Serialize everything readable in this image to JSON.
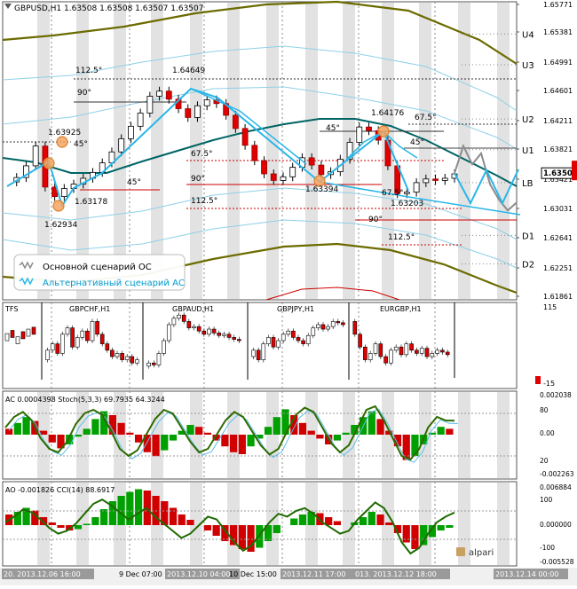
{
  "main": {
    "header": "GBPUSD,H1  1.63508 1.63508 1.63507 1.63507",
    "current_price": "1.63507",
    "price_ticks": [
      "1.65771",
      "1.65381",
      "1.64991",
      "1.64601",
      "1.64211",
      "1.63821",
      "1.63421",
      "1.63031",
      "1.62641",
      "1.62251",
      "1.61861"
    ],
    "level_labels": [
      "U4",
      "U3",
      "U2",
      "U1",
      "LB",
      "D1",
      "D2"
    ],
    "angle_labels": [
      "112.5°",
      "90°",
      "45°",
      "45°",
      "67.5°",
      "90°",
      "112.5°",
      "45°",
      "67.5°",
      "45°",
      "67.5°",
      "90°",
      "112.5°"
    ],
    "price_labels": [
      "1.64649",
      "1.63925",
      "1.63178",
      "1.62934",
      "1.63394",
      "1.64176",
      "1.63203"
    ],
    "legend": {
      "basic": "Основной сценарий ОС",
      "alt": "Альтернативный сценарий АС"
    }
  },
  "tfs": {
    "title": "TFS",
    "pair_labels": [
      "GBPCHF,H1",
      "GBPAUD,H1",
      "GBPJPY,H1",
      "EURGBP,H1"
    ],
    "axis_ticks": [
      "115",
      "-15"
    ]
  },
  "ac_panel": {
    "label": "AC 0.0004398  Stoch(5,3,3) 69.7935 64.3244",
    "axis_ticks": [
      "0.002038",
      "80",
      "0.00",
      "20",
      "-0.002263"
    ]
  },
  "ao_panel": {
    "label": "AO -0.001826  CCI(14) 88.6917",
    "axis_ticks": [
      "0.006884",
      "100",
      "0.000000",
      "-100",
      "-0.005528"
    ]
  },
  "time_axis": [
    "20. 2013.12.06 16:00",
    "9 Dec 07:00",
    "2013.12.10 04:00",
    "10 Dec 15:00",
    "2013.12.11 17:00",
    "013. 2013.12.12 18:00",
    "2013.12.14 00:00"
  ],
  "brand": "alpari",
  "chart_data": [
    {
      "type": "line",
      "title": "GBPUSD,H1",
      "ylim": [
        1.6178,
        1.6585
      ],
      "series": [
        {
          "values": [
            1.6339,
            1.6345,
            1.6361,
            1.6388,
            1.6332,
            1.6319,
            1.633,
            1.6336,
            1.6344,
            1.6352,
            1.6365,
            1.638,
            1.6398,
            1.6415,
            1.6433,
            1.6456,
            1.6463,
            1.6452,
            1.6439,
            1.6427,
            1.6443,
            1.6451,
            1.6446,
            1.643,
            1.6412,
            1.6389,
            1.6368,
            1.635,
            1.6341,
            1.6346,
            1.6359,
            1.6372,
            1.6362,
            1.6349,
            1.6353,
            1.637,
            1.6393,
            1.6414,
            1.6409,
            1.6396,
            1.6361,
            1.6323,
            1.6325,
            1.6338,
            1.6343,
            1.6341,
            1.6344,
            1.635
          ]
        },
        {
          "name": "Основной сценарий ОС",
          "values": [
            1.6351,
            1.6388,
            1.6363,
            1.6378,
            1.6336,
            1.6315,
            1.63,
            1.6311
          ]
        },
        {
          "name": "Альтернативный сценарий АС",
          "values": [
            1.6351,
            1.631,
            1.6355,
            1.631,
            1.6356
          ]
        }
      ],
      "levels": {
        "U4": 1.6541,
        "U3": 1.6499,
        "U2": 1.6425,
        "U1": 1.6383,
        "LB": 1.6338,
        "D1": 1.6266,
        "D2": 1.6227
      }
    },
    {
      "type": "bar",
      "title": "TFS",
      "series": [
        {
          "name": "GBPCHF,H1",
          "values": [
            20,
            35,
            45,
            30,
            60,
            70,
            40,
            55,
            65,
            50,
            80,
            60,
            45,
            35,
            25,
            30,
            20,
            25,
            15,
            20
          ]
        },
        {
          "name": "GBPAUD,H1",
          "values": [
            10,
            15,
            12,
            30,
            50,
            75,
            85,
            90,
            80,
            70,
            72,
            65,
            60,
            68,
            62,
            58,
            60,
            55,
            52,
            50
          ]
        },
        {
          "name": "GBPJPY,H1",
          "values": [
            25,
            35,
            20,
            45,
            55,
            40,
            50,
            60,
            65,
            55,
            50,
            45,
            58,
            70,
            75,
            68,
            72,
            80,
            78,
            75
          ]
        },
        {
          "name": "EURGBP,H1",
          "values": [
            80,
            60,
            40,
            20,
            30,
            45,
            25,
            15,
            35,
            40,
            28,
            45,
            35,
            30,
            38,
            25,
            30,
            35,
            32,
            28
          ]
        }
      ]
    },
    {
      "type": "bar",
      "title": "AC 0.0004398  Stoch(5,3,3) 69.7935 64.3244",
      "series": [
        {
          "name": "AC",
          "values": [
            0.3,
            0.6,
            0.9,
            0.7,
            0.2,
            -0.4,
            -0.7,
            -0.5,
            -0.1,
            0.3,
            0.8,
            1.2,
            1.0,
            0.6,
            0.1,
            -0.4,
            -0.9,
            -1.1,
            -0.8,
            -0.3,
            0.2,
            0.5,
            0.4,
            0.1,
            -0.3,
            -0.6,
            -0.9,
            -1.0,
            -0.6,
            -0.2,
            0.4,
            0.9,
            1.3,
            1.0,
            0.6,
            0.2,
            -0.2,
            -0.5,
            -0.3,
            0.1,
            0.5,
            0.9,
            1.2,
            0.8,
            0.2,
            -0.6,
            -1.3,
            -1.1,
            -0.5,
            0.1,
            0.4,
            0.3
          ]
        },
        {
          "name": "Stoch",
          "values": [
            60,
            75,
            82,
            70,
            45,
            30,
            25,
            40,
            65,
            80,
            85,
            78,
            55,
            30,
            20,
            28,
            50,
            72,
            85,
            80,
            60,
            40,
            25,
            30,
            50,
            70,
            82,
            75,
            55,
            35,
            22,
            30,
            55,
            78,
            88,
            82,
            60,
            38,
            25,
            35,
            60,
            85,
            90,
            70,
            45,
            20,
            15,
            30,
            60,
            75,
            70,
            69.8
          ]
        }
      ]
    },
    {
      "type": "bar",
      "title": "AO -0.001826  CCI(14) 88.6917",
      "series": [
        {
          "name": "AO",
          "values": [
            0.8,
            1.0,
            1.3,
            1.1,
            0.6,
            0.2,
            -0.2,
            -0.4,
            -0.3,
            0.1,
            0.6,
            1.2,
            1.8,
            2.2,
            2.5,
            2.7,
            2.6,
            2.2,
            1.8,
            1.3,
            0.8,
            0.4,
            0.0,
            -0.4,
            -0.8,
            -1.2,
            -1.5,
            -1.8,
            -2.0,
            -1.7,
            -1.2,
            -0.6,
            0.0,
            0.5,
            0.8,
            1.0,
            0.9,
            0.6,
            0.3,
            0.0,
            0.2,
            0.6,
            1.0,
            0.8,
            0.2,
            -0.6,
            -1.3,
            -1.8,
            -1.5,
            -0.9,
            -0.4,
            -0.2
          ]
        },
        {
          "name": "CCI",
          "values": [
            20,
            60,
            110,
            90,
            40,
            -20,
            -60,
            -40,
            10,
            80,
            150,
            180,
            140,
            90,
            40,
            80,
            120,
            60,
            10,
            -40,
            -90,
            -60,
            0,
            60,
            40,
            -40,
            -120,
            -180,
            -140,
            -60,
            20,
            80,
            60,
            100,
            120,
            80,
            20,
            -20,
            -60,
            -40,
            40,
            100,
            160,
            120,
            20,
            -120,
            -200,
            -160,
            -60,
            20,
            60,
            88.7
          ]
        }
      ]
    }
  ]
}
